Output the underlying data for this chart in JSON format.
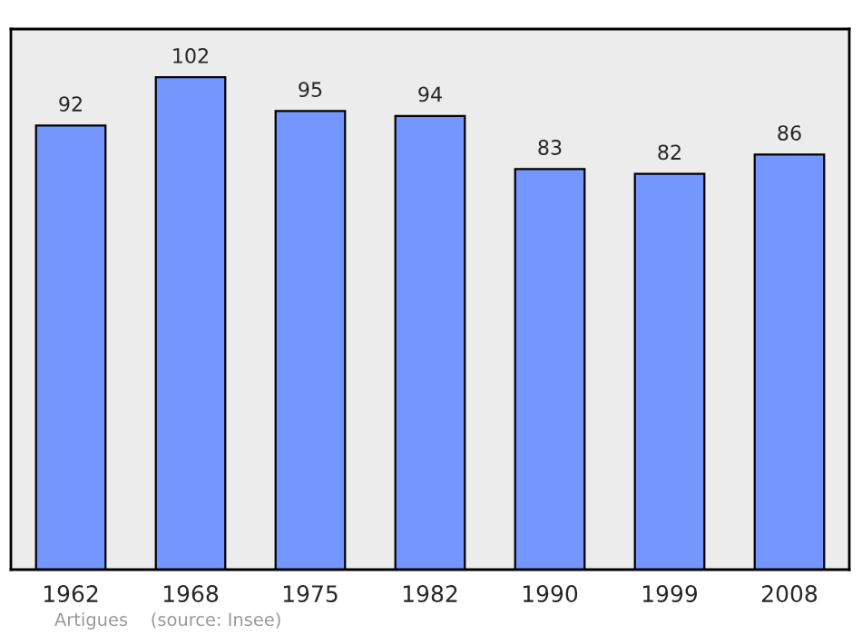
{
  "chart_data": {
    "type": "bar",
    "categories": [
      "1962",
      "1968",
      "1975",
      "1982",
      "1990",
      "1999",
      "2008"
    ],
    "values": [
      92,
      102,
      95,
      94,
      83,
      82,
      86
    ],
    "color": "#7396ff",
    "ylim": [
      0,
      112
    ],
    "data_labels": true,
    "tick_labels": "x",
    "grid": false,
    "annotations": [
      "Artigues    (source: Insee)"
    ]
  }
}
